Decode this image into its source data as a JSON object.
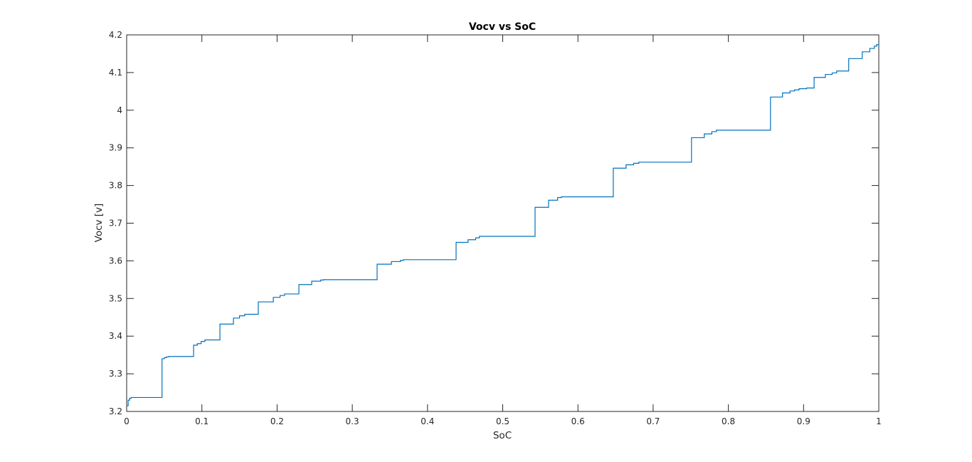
{
  "chart_data": {
    "type": "line",
    "title": "Vocv vs SoC",
    "xlabel": "SoC",
    "ylabel": "Vocv [v]",
    "xlim": [
      0,
      1
    ],
    "ylim": [
      3.2,
      4.2
    ],
    "xticks": [
      0,
      0.1,
      0.2,
      0.3,
      0.4,
      0.5,
      0.6,
      0.7,
      0.8,
      0.9,
      1
    ],
    "xtick_labels": [
      "0",
      "0.1",
      "0.2",
      "0.3",
      "0.4",
      "0.5",
      "0.6",
      "0.7",
      "0.8",
      "0.9",
      "1"
    ],
    "yticks": [
      3.2,
      3.3,
      3.4,
      3.5,
      3.6,
      3.7,
      3.8,
      3.9,
      4,
      4.1,
      4.2
    ],
    "ytick_labels": [
      "3.2",
      "3.3",
      "3.4",
      "3.5",
      "3.6",
      "3.7",
      "3.8",
      "3.9",
      "4",
      "4.1",
      "4.2"
    ],
    "grid": false,
    "line_color": "#0072BD",
    "series": [
      {
        "step": true,
        "x": [
          0,
          0.002,
          0.004,
          0.006,
          0.047,
          0.05,
          0.053,
          0.056,
          0.089,
          0.094,
          0.099,
          0.104,
          0.124,
          0.142,
          0.15,
          0.157,
          0.175,
          0.195,
          0.204,
          0.21,
          0.229,
          0.246,
          0.258,
          0.262,
          0.333,
          0.352,
          0.364,
          0.368,
          0.438,
          0.454,
          0.464,
          0.469,
          0.543,
          0.561,
          0.573,
          0.578,
          0.647,
          0.664,
          0.674,
          0.681,
          0.751,
          0.768,
          0.778,
          0.784,
          0.856,
          0.872,
          0.882,
          0.888,
          0.894,
          0.904,
          0.914,
          0.929,
          0.938,
          0.944,
          0.96,
          0.978,
          0.988,
          0.994,
          0.997,
          1.0
        ],
        "y": [
          3.215,
          3.23,
          3.235,
          3.237,
          3.34,
          3.343,
          3.345,
          3.346,
          3.376,
          3.38,
          3.386,
          3.39,
          3.432,
          3.448,
          3.454,
          3.458,
          3.491,
          3.503,
          3.508,
          3.512,
          3.537,
          3.546,
          3.549,
          3.55,
          3.591,
          3.598,
          3.601,
          3.603,
          3.649,
          3.656,
          3.661,
          3.665,
          3.742,
          3.761,
          3.768,
          3.77,
          3.846,
          3.855,
          3.859,
          3.862,
          3.927,
          3.937,
          3.943,
          3.947,
          4.035,
          4.046,
          4.051,
          4.054,
          4.057,
          4.059,
          4.087,
          4.095,
          4.099,
          4.104,
          4.137,
          4.155,
          4.164,
          4.17,
          4.174,
          4.175
        ]
      }
    ]
  }
}
